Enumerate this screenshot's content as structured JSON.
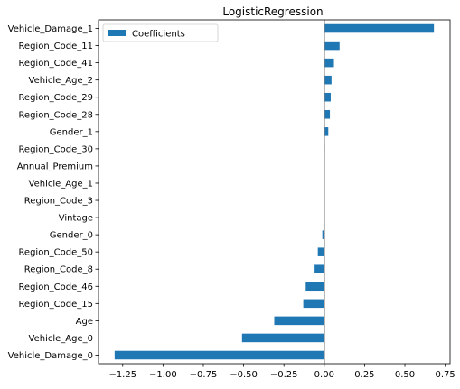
{
  "chart_data": {
    "type": "bar",
    "orientation": "horizontal",
    "title": "LogisticRegression",
    "xlabel": "",
    "ylabel": "",
    "xlim": [
      -1.4,
      0.78
    ],
    "xticks": [
      -1.25,
      -1.0,
      -0.75,
      -0.5,
      -0.25,
      0.0,
      0.25,
      0.5,
      0.75
    ],
    "xtick_labels": [
      "−1.25",
      "−1.00",
      "−0.75",
      "−0.50",
      "−0.25",
      "0.00",
      "0.25",
      "0.50",
      "0.75"
    ],
    "categories": [
      "Vehicle_Damage_1",
      "Region_Code_11",
      "Region_Code_41",
      "Vehicle_Age_2",
      "Region_Code_29",
      "Region_Code_28",
      "Gender_1",
      "Region_Code_30",
      "Annual_Premium",
      "Vehicle_Age_1",
      "Region_Code_3",
      "Vintage",
      "Gender_0",
      "Region_Code_50",
      "Region_Code_8",
      "Region_Code_46",
      "Region_Code_15",
      "Age",
      "Vehicle_Age_0",
      "Vehicle_Damage_0"
    ],
    "series": [
      {
        "name": "Coefficients",
        "color": "#1f77b4",
        "values": [
          0.68,
          0.095,
          0.06,
          0.045,
          0.04,
          0.035,
          0.025,
          0.004,
          0.002,
          0.001,
          0.001,
          0.0,
          -0.012,
          -0.04,
          -0.06,
          -0.115,
          -0.13,
          -0.31,
          -0.51,
          -1.3
        ]
      }
    ],
    "reference_line": {
      "x": 0.0,
      "color": "#808080"
    },
    "legend": {
      "position": "top-left"
    },
    "grid": false
  }
}
